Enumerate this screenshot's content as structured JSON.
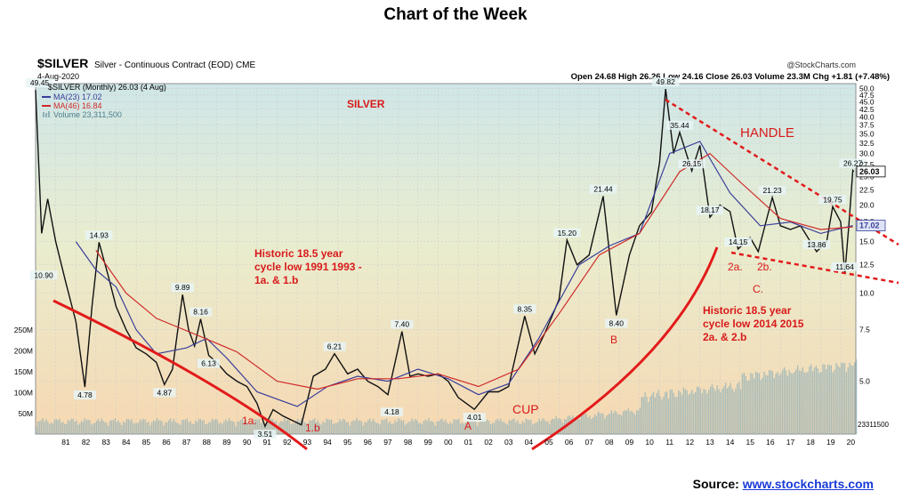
{
  "page": {
    "title": "Chart of the Week",
    "source_label": "Source:",
    "source_link": "www.stockcharts.com"
  },
  "header": {
    "symbol": "$SILVER",
    "description": "Silver - Continuous Contract (EOD) CME",
    "date": "4-Aug-2020",
    "watermark": "@StockCharts.com",
    "ohlc": "Open 24.68  High 26.26  Low 24.16  Close 26.03  Volume 23.3M  Chg +1.81 (+7.48%)",
    "legend_main": "$SILVER (Monthly) 26.03 (4 Aug)",
    "legend_ma23": "MA(23) 17.02",
    "legend_ma46": "MA(46) 16.84",
    "legend_vol": "Volume 23,311,500"
  },
  "colors": {
    "price": "#111111",
    "ma23": "#3a3f9a",
    "ma46": "#cf2a2a",
    "annotation": "#d81a1a",
    "volume": "#8fb0b8"
  },
  "annotations": {
    "silver": "SILVER",
    "handle": "HANDLE",
    "cup": "CUP",
    "cycle1a": "Historic 18.5 year",
    "cycle1b": "cycle low 1991 1993 -",
    "cycle1c": "1a. & 1.b",
    "cycle2a": "Historic 18.5 year",
    "cycle2b": "cycle low 2014 2015",
    "cycle2c": "2a. & 2.b",
    "lbl_1a": "1a.",
    "lbl_1b": "1.b",
    "lbl_A": "A",
    "lbl_B": "B",
    "lbl_C": "C.",
    "lbl_2a": "2a.",
    "lbl_2b": "2b."
  },
  "chart_data": {
    "type": "line",
    "x_tick_labels": [
      "81",
      "82",
      "83",
      "84",
      "85",
      "86",
      "87",
      "88",
      "89",
      "90",
      "91",
      "92",
      "93",
      "94",
      "95",
      "96",
      "97",
      "98",
      "99",
      "00",
      "01",
      "02",
      "03",
      "04",
      "05",
      "06",
      "07",
      "08",
      "09",
      "10",
      "11",
      "12",
      "13",
      "14",
      "15",
      "16",
      "17",
      "18",
      "19",
      "20"
    ],
    "y_tick_labels": [
      "50.0",
      "47.5",
      "45.0",
      "42.5",
      "40.0",
      "37.5",
      "35.0",
      "32.5",
      "30.0",
      "27.5",
      "25.0",
      "22.5",
      "20.0",
      "17.5",
      "15.0",
      "12.5",
      "10.0",
      "7.5",
      "5.0"
    ],
    "y_scale": "log",
    "ylim": [
      3.3,
      52
    ],
    "volume_tick_labels": [
      "250M",
      "200M",
      "150M",
      "100M",
      "50M"
    ],
    "volume_last_label": "23311500",
    "series": [
      {
        "name": "$SILVER (Monthly)",
        "points": [
          [
            1980.0,
            49.45
          ],
          [
            1980.3,
            16
          ],
          [
            1980.6,
            21
          ],
          [
            1981.0,
            15
          ],
          [
            1981.5,
            10.9
          ],
          [
            1982.0,
            8
          ],
          [
            1982.45,
            4.78
          ],
          [
            1982.8,
            9
          ],
          [
            1983.15,
            14.93
          ],
          [
            1983.6,
            11.5
          ],
          [
            1984.0,
            9
          ],
          [
            1984.5,
            7.5
          ],
          [
            1985.0,
            6.5
          ],
          [
            1985.5,
            6.2
          ],
          [
            1986.0,
            5.8
          ],
          [
            1986.4,
            4.87
          ],
          [
            1986.8,
            5.5
          ],
          [
            1987.3,
            9.89
          ],
          [
            1987.6,
            7.5
          ],
          [
            1987.9,
            6.6
          ],
          [
            1988.2,
            8.16
          ],
          [
            1988.6,
            6.13
          ],
          [
            1989.0,
            5.8
          ],
          [
            1989.5,
            5.3
          ],
          [
            1990.0,
            5.0
          ],
          [
            1990.5,
            4.8
          ],
          [
            1991.0,
            4.2
          ],
          [
            1991.4,
            3.51
          ],
          [
            1991.8,
            4.0
          ],
          [
            1992.3,
            3.8
          ],
          [
            1993.2,
            3.55
          ],
          [
            1993.8,
            5.2
          ],
          [
            1994.4,
            5.5
          ],
          [
            1994.85,
            6.21
          ],
          [
            1995.5,
            5.3
          ],
          [
            1996.0,
            5.5
          ],
          [
            1996.5,
            5.0
          ],
          [
            1997.0,
            4.8
          ],
          [
            1997.5,
            4.5
          ],
          [
            1998.2,
            7.4
          ],
          [
            1998.6,
            5.2
          ],
          [
            1999.0,
            5.3
          ],
          [
            1999.5,
            5.2
          ],
          [
            2000.0,
            5.3
          ],
          [
            2000.5,
            5.0
          ],
          [
            2001.0,
            4.4
          ],
          [
            2001.8,
            4.01
          ],
          [
            2002.5,
            4.6
          ],
          [
            2003.0,
            4.6
          ],
          [
            2003.5,
            4.8
          ],
          [
            2004.3,
            8.35
          ],
          [
            2004.8,
            6.2
          ],
          [
            2005.3,
            7.3
          ],
          [
            2006.0,
            9.5
          ],
          [
            2006.4,
            15.2
          ],
          [
            2006.9,
            12.5
          ],
          [
            2007.5,
            13.5
          ],
          [
            2008.2,
            21.44
          ],
          [
            2008.85,
            8.4
          ],
          [
            2009.5,
            13.5
          ],
          [
            2010.0,
            17
          ],
          [
            2010.6,
            19
          ],
          [
            2011.0,
            28
          ],
          [
            2011.3,
            49.82
          ],
          [
            2011.7,
            30
          ],
          [
            2012.0,
            35.44
          ],
          [
            2012.6,
            26.15
          ],
          [
            2013.0,
            32
          ],
          [
            2013.5,
            18.17
          ],
          [
            2014.0,
            20
          ],
          [
            2014.5,
            19
          ],
          [
            2014.9,
            14.15
          ],
          [
            2015.5,
            15.5
          ],
          [
            2015.9,
            13.86
          ],
          [
            2016.6,
            21.23
          ],
          [
            2017.0,
            17
          ],
          [
            2017.5,
            16.5
          ],
          [
            2018.0,
            17
          ],
          [
            2018.8,
            13.86
          ],
          [
            2019.3,
            15
          ],
          [
            2019.6,
            19.75
          ],
          [
            2020.0,
            17.5
          ],
          [
            2020.2,
            11.64
          ],
          [
            2020.4,
            17
          ],
          [
            2020.6,
            26.27
          ],
          [
            2020.65,
            26.03
          ]
        ]
      },
      {
        "name": "MA(23)",
        "points": [
          [
            1982.0,
            15
          ],
          [
            1983.0,
            12
          ],
          [
            1984.0,
            10.5
          ],
          [
            1985.0,
            7.5
          ],
          [
            1986.0,
            6.2
          ],
          [
            1987.5,
            6.5
          ],
          [
            1988.5,
            7
          ],
          [
            1989.5,
            6
          ],
          [
            1991.0,
            4.6
          ],
          [
            1993.0,
            4.1
          ],
          [
            1994.5,
            4.8
          ],
          [
            1996.0,
            5.2
          ],
          [
            1997.5,
            5.0
          ],
          [
            1999.0,
            5.5
          ],
          [
            2000.5,
            5.1
          ],
          [
            2002.0,
            4.5
          ],
          [
            2003.5,
            4.9
          ],
          [
            2005.0,
            7.0
          ],
          [
            2007.0,
            12.5
          ],
          [
            2008.5,
            14.5
          ],
          [
            2010.0,
            16
          ],
          [
            2011.5,
            30
          ],
          [
            2013.0,
            33
          ],
          [
            2014.5,
            22
          ],
          [
            2016.0,
            17
          ],
          [
            2017.5,
            17.5
          ],
          [
            2019.0,
            16
          ],
          [
            2020.6,
            17.02
          ]
        ]
      },
      {
        "name": "MA(46)",
        "points": [
          [
            1983.0,
            14
          ],
          [
            1984.5,
            10
          ],
          [
            1986.0,
            8.2
          ],
          [
            1988.0,
            7.2
          ],
          [
            1990.0,
            6.3
          ],
          [
            1992.0,
            5.0
          ],
          [
            1994.0,
            4.7
          ],
          [
            1996.0,
            5.1
          ],
          [
            1998.0,
            5.1
          ],
          [
            2000.0,
            5.3
          ],
          [
            2002.0,
            4.8
          ],
          [
            2004.0,
            5.5
          ],
          [
            2006.0,
            8.5
          ],
          [
            2008.0,
            13.5
          ],
          [
            2010.0,
            16
          ],
          [
            2012.0,
            26
          ],
          [
            2013.5,
            30
          ],
          [
            2015.0,
            24
          ],
          [
            2017.0,
            18
          ],
          [
            2019.0,
            16.5
          ],
          [
            2020.6,
            16.84
          ]
        ]
      }
    ],
    "labels": [
      {
        "x": 1980.2,
        "y": 49.45,
        "text": "49.45"
      },
      {
        "x": 1980.4,
        "y": 10.9,
        "text": "10.90"
      },
      {
        "x": 1982.45,
        "y": 4.78,
        "text": "4.78"
      },
      {
        "x": 1983.15,
        "y": 14.93,
        "text": "14.93"
      },
      {
        "x": 1986.4,
        "y": 4.87,
        "text": "4.87"
      },
      {
        "x": 1987.3,
        "y": 9.89,
        "text": "9.89"
      },
      {
        "x": 1988.2,
        "y": 8.16,
        "text": "8.16"
      },
      {
        "x": 1988.6,
        "y": 6.13,
        "text": "6.13"
      },
      {
        "x": 1991.4,
        "y": 3.51,
        "text": "3.51"
      },
      {
        "x": 1994.85,
        "y": 6.21,
        "text": "6.21"
      },
      {
        "x": 1997.7,
        "y": 4.18,
        "text": "4.18"
      },
      {
        "x": 1998.2,
        "y": 7.4,
        "text": "7.40"
      },
      {
        "x": 2001.8,
        "y": 4.01,
        "text": "4.01"
      },
      {
        "x": 2004.3,
        "y": 8.35,
        "text": "8.35"
      },
      {
        "x": 2006.4,
        "y": 15.2,
        "text": "15.20"
      },
      {
        "x": 2008.2,
        "y": 21.44,
        "text": "21.44"
      },
      {
        "x": 2008.85,
        "y": 8.4,
        "text": "8.40"
      },
      {
        "x": 2011.3,
        "y": 49.82,
        "text": "49.82"
      },
      {
        "x": 2012.0,
        "y": 35.44,
        "text": "35.44"
      },
      {
        "x": 2012.6,
        "y": 26.15,
        "text": "26.15"
      },
      {
        "x": 2013.5,
        "y": 18.17,
        "text": "18.17"
      },
      {
        "x": 2014.9,
        "y": 14.15,
        "text": "14.15"
      },
      {
        "x": 2016.6,
        "y": 21.23,
        "text": "21.23"
      },
      {
        "x": 2018.8,
        "y": 13.86,
        "text": "13.86"
      },
      {
        "x": 2019.6,
        "y": 19.75,
        "text": "19.75"
      },
      {
        "x": 2020.2,
        "y": 11.64,
        "text": "11.64"
      },
      {
        "x": 2020.6,
        "y": 26.27,
        "text": "26.27"
      }
    ],
    "right_tags": [
      {
        "y": 26.03,
        "text": "26.03"
      },
      {
        "y": 17.02,
        "text": "17.02"
      }
    ],
    "grid": true
  }
}
